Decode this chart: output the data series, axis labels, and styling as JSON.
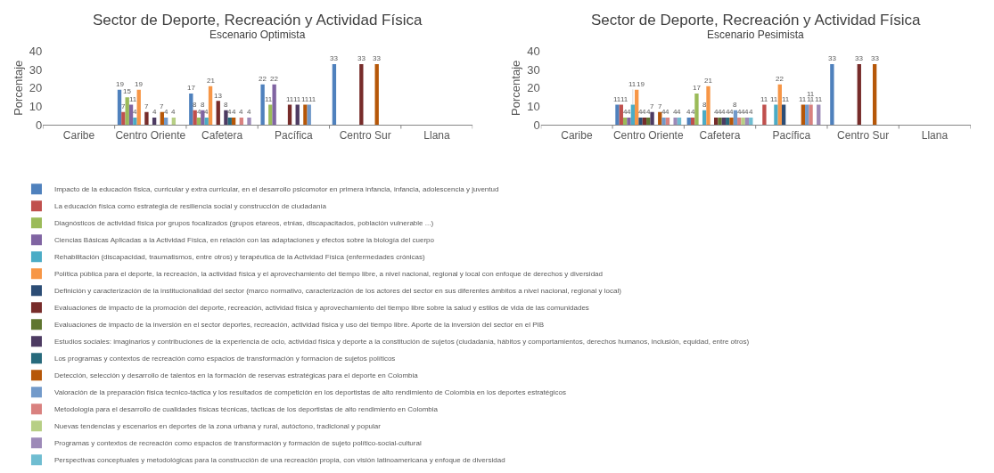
{
  "chart_data": [
    {
      "type": "bar",
      "title": "Sector de Deporte, Recreación y Actividad Física",
      "subtitle": "Escenario Optimista",
      "ylabel": "Porcentaje",
      "categories": [
        "Caribe",
        "Centro Oriente",
        "Cafetera",
        "Pacífica",
        "Centro Sur",
        "Llana"
      ],
      "ylim": [
        0,
        40
      ],
      "yticks": [
        0,
        10,
        20,
        30,
        40
      ],
      "grid": false,
      "legend": "bottom",
      "data_labels": true,
      "series": [
        {
          "name": "Impacto de la educación física, curricular y extra curricular, en el desarrollo psicomotor en primera infancia, infancia, adolescencia y juventud",
          "color": "#4f81bd",
          "values": [
            null,
            19,
            17,
            22,
            33,
            null
          ]
        },
        {
          "name": "La educación física como estrategia de resiliencia social y construcción de ciudadanía",
          "color": "#c0504d",
          "values": [
            null,
            7,
            8,
            null,
            null,
            null
          ]
        },
        {
          "name": "Diagnósticos de actividad física por grupos focalizados (grupos etareos, etnias, discapacitados, población vulnerable ...)",
          "color": "#9bbb59",
          "values": [
            null,
            15,
            4,
            11,
            null,
            null
          ]
        },
        {
          "name": "Ciencias Básicas Aplicadas a la Actividad Física, en relación con las adaptaciones y efectos sobre la biología del cuerpo",
          "color": "#8064a2",
          "values": [
            null,
            11,
            8,
            22,
            null,
            null
          ]
        },
        {
          "name": "Rehabilitación (discapacidad, traumatismos, entre otros) y terapéutica de la Actividad Física (enfermedades crónicas)",
          "color": "#4bacc6",
          "values": [
            null,
            4,
            4,
            null,
            null,
            null
          ]
        },
        {
          "name": "Política pública para el deporte, la recreación, la actividad física y el aprovechamiento del tiempo libre, a nivel nacional, regional y local con enfoque de derechos y diversidad",
          "color": "#f79646",
          "values": [
            null,
            19,
            21,
            null,
            null,
            null
          ]
        },
        {
          "name": "Definición y caracterización de la institucionalidad del sector (marco normativo, caracterización de los actores del sector en sus diferentes ámbitos a nivel nacional, regional y local)",
          "color": "#2c4d75",
          "values": [
            null,
            null,
            null,
            null,
            null,
            null
          ]
        },
        {
          "name": "Evaluaciones de impacto de la promoción del deporte, recreación, actividad física y aprovechamiento del tiempo libre sobre la salud y estilos de vida de las comunidades",
          "color": "#772c2a",
          "values": [
            null,
            7,
            13,
            11,
            33,
            null
          ]
        },
        {
          "name": "Evaluaciones de impacto de la inversión en el sector deportes, recreación, actividad física y uso del tiempo libre. Aporte de la inversión del sector en el PIB",
          "color": "#5f7530",
          "values": [
            null,
            null,
            null,
            null,
            null,
            null
          ]
        },
        {
          "name": "Estudios sociales: imaginarios y contribuciones de la experiencia de ocio, actividad física y deporte a la constitución de sujetos (ciudadanía, hábitos y comportamientos, derechos humanos, inclusión, equidad, entre otros)",
          "color": "#4d3b62",
          "values": [
            null,
            4,
            8,
            11,
            null,
            null
          ]
        },
        {
          "name": "Los programas y contextos de recreación como espacios de transformación y formacion de sujetos políticos",
          "color": "#276a7c",
          "values": [
            null,
            null,
            4,
            null,
            null,
            null
          ]
        },
        {
          "name": "Detección, selección y desarrollo de talentos en la formación de reservas estratégicas para el deporte en Colombia",
          "color": "#b65708",
          "values": [
            null,
            7,
            4,
            11,
            33,
            null
          ]
        },
        {
          "name": "Valoración de la preparación física tecnico-táctica y los resultados de competición en los deportistas de alto rendimiento de Colombia en los deportes estratégicos",
          "color": "#729aca",
          "values": [
            null,
            4,
            null,
            11,
            null,
            null
          ]
        },
        {
          "name": "Metodología para el desarrollo de cualidades físicas técnicas, tácticas de los deportistas de alto rendimiento en Colombia",
          "color": "#d9817f",
          "values": [
            null,
            null,
            4,
            null,
            null,
            null
          ]
        },
        {
          "name": "Nuevas tendencias y escenarios en deportes de la zona urbana y rural, autóctono, tradicional y popular",
          "color": "#b7cf85",
          "values": [
            null,
            4,
            null,
            null,
            null,
            null
          ]
        },
        {
          "name": "Programas y contextos de recreación como espacios de transformación y formación de sujeto político-social-cultural",
          "color": "#9d8ab8",
          "values": [
            null,
            null,
            4,
            null,
            null,
            null
          ]
        },
        {
          "name": "Perspectivas conceptuales y metodológicas para la construcción de una recreación propia, con visión latinoamericana y enfoque de diversidad",
          "color": "#6fbdd1",
          "values": [
            null,
            null,
            null,
            null,
            null,
            null
          ]
        }
      ]
    },
    {
      "type": "bar",
      "title": "Sector de Deporte, Recreación y Actividad Física",
      "subtitle": "Escenario Pesimista",
      "ylabel": "Porcentaje",
      "categories": [
        "Caribe",
        "Centro Oriente",
        "Cafetera",
        "Pacífica",
        "Centro Sur",
        "Llana"
      ],
      "ylim": [
        0,
        40
      ],
      "yticks": [
        0,
        10,
        20,
        30,
        40
      ],
      "grid": false,
      "data_labels": true,
      "series": [
        {
          "color": "#4f81bd",
          "values": [
            null,
            11,
            4,
            null,
            33,
            null
          ]
        },
        {
          "color": "#c0504d",
          "values": [
            null,
            11,
            4,
            11,
            null,
            null
          ]
        },
        {
          "color": "#9bbb59",
          "values": [
            null,
            4,
            17,
            null,
            null,
            null
          ]
        },
        {
          "color": "#8064a2",
          "values": [
            null,
            4,
            null,
            null,
            null,
            null
          ]
        },
        {
          "color": "#4bacc6",
          "values": [
            null,
            11,
            8,
            11,
            null,
            null
          ]
        },
        {
          "color": "#f79646",
          "values": [
            null,
            19,
            21,
            22,
            null,
            null
          ]
        },
        {
          "color": "#2c4d75",
          "values": [
            null,
            4,
            null,
            11,
            null,
            null
          ]
        },
        {
          "color": "#772c2a",
          "values": [
            null,
            4,
            4,
            null,
            33,
            null
          ]
        },
        {
          "color": "#5f7530",
          "values": [
            null,
            4,
            4,
            null,
            null,
            null
          ]
        },
        {
          "color": "#4d3b62",
          "values": [
            null,
            7,
            4,
            null,
            null,
            null
          ]
        },
        {
          "color": "#276a7c",
          "values": [
            null,
            null,
            4,
            null,
            null,
            null
          ]
        },
        {
          "color": "#b65708",
          "values": [
            null,
            7,
            4,
            11,
            33,
            null
          ]
        },
        {
          "color": "#729aca",
          "values": [
            null,
            4,
            8,
            11,
            null,
            null
          ]
        },
        {
          "color": "#d9817f",
          "values": [
            null,
            4,
            4,
            11,
            null,
            null
          ]
        },
        {
          "color": "#b7cf85",
          "values": [
            null,
            null,
            4,
            null,
            null,
            null
          ]
        },
        {
          "color": "#9d8ab8",
          "values": [
            null,
            4,
            4,
            11,
            null,
            null
          ]
        },
        {
          "color": "#6fbdd1",
          "values": [
            null,
            4,
            4,
            null,
            null,
            null
          ]
        }
      ]
    }
  ]
}
